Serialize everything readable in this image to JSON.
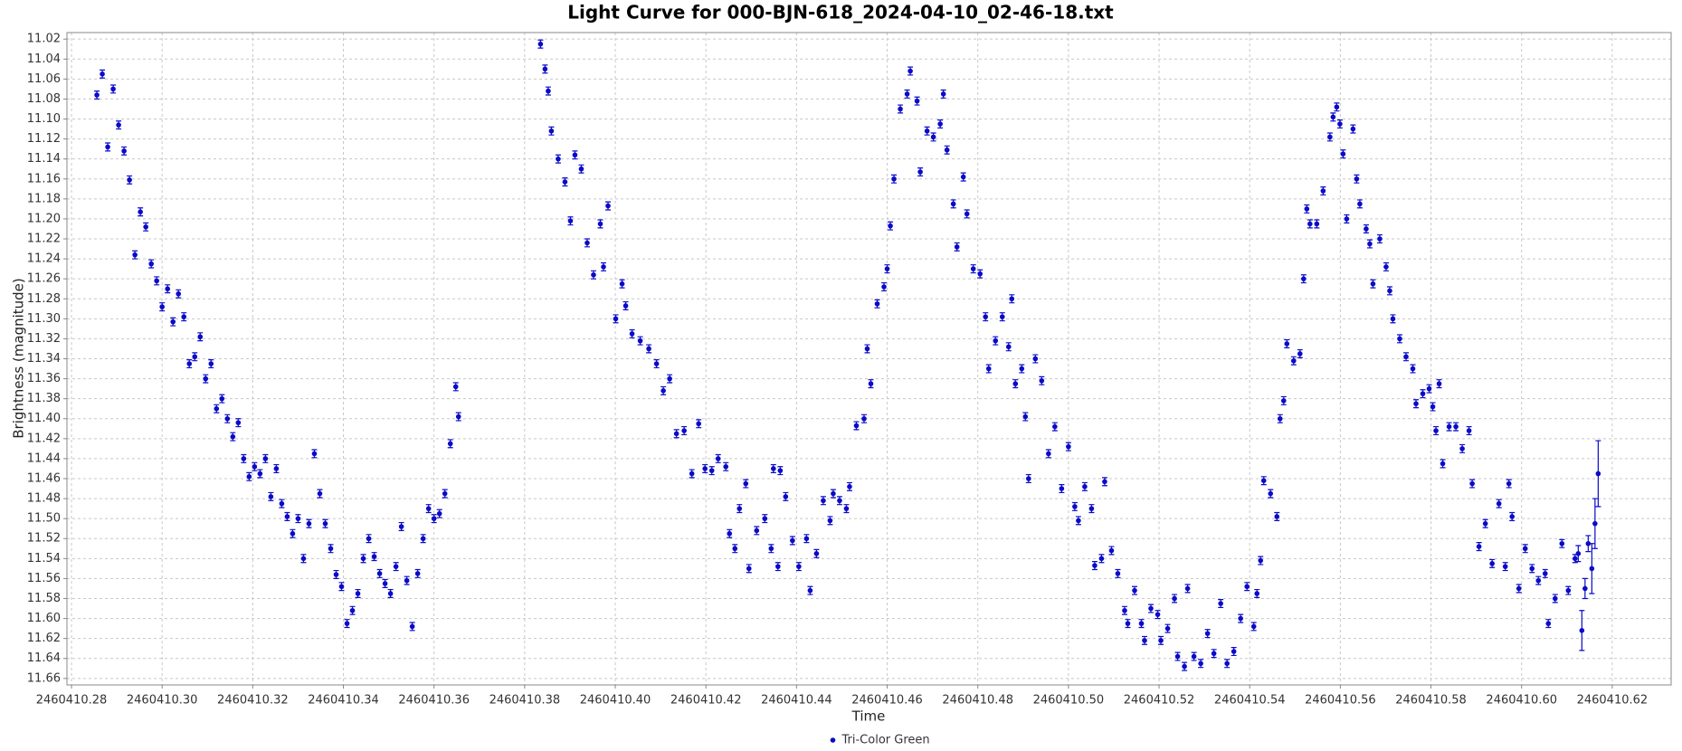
{
  "chart_data": {
    "type": "scatter",
    "title": "Light Curve for 000-BJN-618_2024-04-10_02-46-18.txt",
    "x_label": "Time",
    "y_label": "Brightness (magnitude)",
    "xlim": [
      2460410.279,
      2460410.633
    ],
    "ylim": [
      11.0135,
      11.6665
    ],
    "y_inverted": true,
    "grid": true,
    "legend": "bottom",
    "xticks": [
      2460410.28,
      {
        "value": 2460410.3,
        "label": "2460410.30"
      },
      2460410.32,
      2460410.34,
      2460410.36,
      2460410.38,
      {
        "value": 2460410.4,
        "label": "2460410.40"
      },
      2460410.42,
      2460410.44,
      2460410.46,
      2460410.48,
      {
        "value": 2460410.5,
        "label": "2460410.50"
      },
      2460410.52,
      2460410.54,
      2460410.56,
      2460410.58,
      {
        "value": 2460410.6,
        "label": "2460410.60"
      },
      2460410.62
    ],
    "yticks": [
      11.02,
      11.04,
      11.06,
      11.08,
      {
        "value": 11.1,
        "label": "11.10"
      },
      11.12,
      11.14,
      11.16,
      11.18,
      {
        "value": 11.2,
        "label": "11.20"
      },
      11.22,
      11.24,
      11.26,
      11.28,
      {
        "value": 11.3,
        "label": "11.30"
      },
      11.32,
      11.34,
      11.36,
      11.38,
      {
        "value": 11.4,
        "label": "11.40"
      },
      11.42,
      11.44,
      11.46,
      11.48,
      {
        "value": 11.5,
        "label": "11.50"
      },
      11.52,
      11.54,
      11.56,
      11.58,
      {
        "value": 11.6,
        "label": "11.60"
      },
      11.62,
      11.64,
      11.66
    ],
    "series": [
      {
        "name": "Tri-Color Green",
        "color": "#0a0ac8",
        "x": [
          2460410.2856,
          2460410.2868,
          2460410.288,
          2460410.2892,
          2460410.2904,
          2460410.2916,
          2460410.2928,
          2460410.294,
          2460410.2952,
          2460410.2964,
          2460410.2976,
          2460410.2988,
          2460410.3,
          2460410.3012,
          2460410.3024,
          2460410.3036,
          2460410.3048,
          2460410.306,
          2460410.3072,
          2460410.3084,
          2460410.3096,
          2460410.3108,
          2460410.312,
          2460410.3132,
          2460410.3144,
          2460410.3156,
          2460410.3168,
          2460410.318,
          2460410.3192,
          2460410.3204,
          2460410.3216,
          2460410.3228,
          2460410.324,
          2460410.3252,
          2460410.3264,
          2460410.3276,
          2460410.3288,
          2460410.33,
          2460410.3312,
          2460410.3324,
          2460410.3336,
          2460410.3348,
          2460410.336,
          2460410.3372,
          2460410.3384,
          2460410.3396,
          2460410.3408,
          2460410.342,
          2460410.3432,
          2460410.3444,
          2460410.3456,
          2460410.3468,
          2460410.348,
          2460410.3492,
          2460410.3504,
          2460410.3516,
          2460410.3528,
          2460410.354,
          2460410.3552,
          2460410.3564,
          2460410.3576,
          2460410.3588,
          2460410.36,
          2460410.3612,
          2460410.3624,
          2460410.3636,
          2460410.3648,
          2460410.3654,
          2460410.3835,
          2460410.3845,
          2460410.3852,
          2460410.3859,
          2460410.3874,
          2460410.3889,
          2460410.3901,
          2460410.3911,
          2460410.3925,
          2460410.3938,
          2460410.3952,
          2460410.3967,
          2460410.3974,
          2460410.3984,
          2460410.4001,
          2460410.4015,
          2460410.4023,
          2460410.4037,
          2460410.4055,
          2460410.4074,
          2460410.4091,
          2460410.4106,
          2460410.412,
          2460410.4135,
          2460410.4152,
          2460410.4169,
          2460410.4184,
          2460410.4198,
          2460410.4213,
          2460410.4227,
          2460410.4244,
          2460410.4252,
          2460410.4264,
          2460410.4274,
          2460410.4288,
          2460410.4295,
          2460410.4312,
          2460410.433,
          2460410.4344,
          2460410.4349,
          2460410.4359,
          2460410.4364,
          2460410.4376,
          2460410.4391,
          2460410.4405,
          2460410.4422,
          2460410.443,
          2460410.4444,
          2460410.4459,
          2460410.4474,
          2460410.4481,
          2460410.4495,
          2460410.451,
          2460410.4517,
          2460410.4532,
          2460410.4549,
          2460410.4556,
          2460410.4564,
          2460410.4578,
          2460410.4593,
          2460410.46,
          2460410.4607,
          2460410.4615,
          2460410.4629,
          2460410.4644,
          2460410.4651,
          2460410.4666,
          2460410.4673,
          2460410.4688,
          2460410.4702,
          2460410.4717,
          2460410.4724,
          2460410.4732,
          2460410.4746,
          2460410.4754,
          2460410.4768,
          2460410.4776,
          2460410.479,
          2460410.4805,
          2460410.4817,
          2460410.4824,
          2460410.4839,
          2460410.4854,
          2460410.4868,
          2460410.4875,
          2460410.4883,
          2460410.4897,
          2460410.4905,
          2460410.4912,
          2460410.4927,
          2460410.4941,
          2460410.4956,
          2460410.497,
          2460410.4985,
          2460410.5,
          2460410.5014,
          2460410.5022,
          2460410.5036,
          2460410.5051,
          2460410.5058,
          2460410.5073,
          2460410.508,
          2460410.5095,
          2460410.5109,
          2460410.5124,
          2460410.5131,
          2460410.5146,
          2460410.5161,
          2460410.5168,
          2460410.5182,
          2460410.5197,
          2460410.5204,
          2460410.5219,
          2460410.5234,
          2460410.5241,
          2460410.5256,
          2460410.5263,
          2460410.5277,
          2460410.5292,
          2460410.5307,
          2460410.5321,
          2460410.5336,
          2460410.535,
          2460410.5365,
          2460410.538,
          2460410.5394,
          2460410.5409,
          2460410.5416,
          2460410.5424,
          2460410.5431,
          2460410.5446,
          2460410.546,
          2460410.5467,
          2460410.5475,
          2460410.5482,
          2460410.5497,
          2460410.5511,
          2460410.5519,
          2460410.5526,
          2460410.5533,
          2460410.5548,
          2460410.5562,
          2460410.5577,
          2460410.5584,
          2460410.5592,
          2460410.5599,
          2460410.5606,
          2460410.5614,
          2460410.5628,
          2460410.5636,
          2460410.5643,
          2460410.5657,
          2460410.5665,
          2460410.5672,
          2460410.5687,
          2460410.5701,
          2460410.5709,
          2460410.5716,
          2460410.5731,
          2460410.5745,
          2460410.576,
          2460410.5767,
          2460410.5782,
          2460410.5796,
          2460410.5804,
          2460410.5811,
          2460410.5818,
          2460410.5826,
          2460410.584,
          2460410.5855,
          2460410.5869,
          2460410.5884,
          2460410.5891,
          2460410.5906,
          2460410.592,
          2460410.5935,
          2460410.595,
          2460410.5964,
          2460410.5972,
          2460410.5979,
          2460410.5994,
          2460410.6008,
          2460410.6023,
          2460410.6037,
          2460410.6052,
          2460410.6059,
          2460410.6074,
          2460410.6089,
          2460410.6103,
          2460410.6118,
          2460410.6125,
          2460410.6133,
          2460410.614,
          2460410.6147,
          2460410.6155,
          2460410.6162,
          2460410.6169
        ],
        "values": [
          11.076,
          11.055,
          11.128,
          11.07,
          11.106,
          11.132,
          11.161,
          11.236,
          11.193,
          11.208,
          11.245,
          11.262,
          11.288,
          11.27,
          11.303,
          11.275,
          11.298,
          11.345,
          11.338,
          11.318,
          11.36,
          11.345,
          11.39,
          11.38,
          11.4,
          11.418,
          11.404,
          11.44,
          11.458,
          11.448,
          11.455,
          11.44,
          11.478,
          11.45,
          11.485,
          11.498,
          11.515,
          11.5,
          11.54,
          11.505,
          11.435,
          11.475,
          11.505,
          11.53,
          11.556,
          11.568,
          11.605,
          11.592,
          11.575,
          11.54,
          11.52,
          11.538,
          11.555,
          11.565,
          11.575,
          11.548,
          11.508,
          11.562,
          11.608,
          11.555,
          11.52,
          11.49,
          11.5,
          11.495,
          11.475,
          11.425,
          11.368,
          11.398,
          11.025,
          11.05,
          11.072,
          11.112,
          11.14,
          11.163,
          11.202,
          11.136,
          11.15,
          11.224,
          11.256,
          11.205,
          11.248,
          11.187,
          11.3,
          11.265,
          11.287,
          11.315,
          11.322,
          11.33,
          11.345,
          11.372,
          11.36,
          11.415,
          11.412,
          11.455,
          11.405,
          11.45,
          11.452,
          11.44,
          11.448,
          11.515,
          11.53,
          11.49,
          11.465,
          11.55,
          11.512,
          11.5,
          11.53,
          11.45,
          11.548,
          11.452,
          11.478,
          11.522,
          11.548,
          11.52,
          11.572,
          11.535,
          11.482,
          11.502,
          11.475,
          11.482,
          11.49,
          11.468,
          11.407,
          11.4,
          11.33,
          11.365,
          11.285,
          11.268,
          11.25,
          11.207,
          11.16,
          11.09,
          11.075,
          11.052,
          11.082,
          11.153,
          11.112,
          11.118,
          11.105,
          11.075,
          11.131,
          11.185,
          11.228,
          11.158,
          11.195,
          11.25,
          11.255,
          11.298,
          11.35,
          11.322,
          11.298,
          11.328,
          11.28,
          11.365,
          11.35,
          11.398,
          11.46,
          11.34,
          11.362,
          11.435,
          11.408,
          11.47,
          11.428,
          11.488,
          11.502,
          11.468,
          11.49,
          11.547,
          11.54,
          11.463,
          11.532,
          11.555,
          11.592,
          11.605,
          11.572,
          11.605,
          11.622,
          11.59,
          11.596,
          11.622,
          11.61,
          11.58,
          11.638,
          11.648,
          11.57,
          11.638,
          11.645,
          11.615,
          11.635,
          11.585,
          11.645,
          11.633,
          11.6,
          11.568,
          11.608,
          11.575,
          11.542,
          11.462,
          11.475,
          11.498,
          11.4,
          11.382,
          11.325,
          11.342,
          11.335,
          11.26,
          11.19,
          11.205,
          11.205,
          11.172,
          11.118,
          11.098,
          11.088,
          11.105,
          11.135,
          11.2,
          11.11,
          11.16,
          11.185,
          11.21,
          11.225,
          11.265,
          11.22,
          11.248,
          11.272,
          11.3,
          11.32,
          11.338,
          11.35,
          11.385,
          11.375,
          11.37,
          11.388,
          11.412,
          11.365,
          11.445,
          11.408,
          11.408,
          11.43,
          11.412,
          11.465,
          11.528,
          11.505,
          11.545,
          11.485,
          11.548,
          11.465,
          11.498,
          11.57,
          11.53,
          11.55,
          11.562,
          11.555,
          11.605,
          11.58,
          11.525,
          11.572,
          11.54,
          11.535,
          11.612,
          11.57,
          11.525,
          11.55,
          11.505,
          11.455
        ],
        "errors": [
          0.004,
          0.004,
          0.004,
          0.004,
          0.004,
          0.004,
          0.004,
          0.004,
          0.004,
          0.004,
          0.004,
          0.004,
          0.004,
          0.004,
          0.004,
          0.004,
          0.004,
          0.004,
          0.004,
          0.004,
          0.004,
          0.004,
          0.004,
          0.004,
          0.004,
          0.004,
          0.004,
          0.004,
          0.004,
          0.004,
          0.004,
          0.004,
          0.004,
          0.004,
          0.004,
          0.004,
          0.004,
          0.004,
          0.004,
          0.004,
          0.004,
          0.004,
          0.004,
          0.004,
          0.004,
          0.004,
          0.004,
          0.004,
          0.004,
          0.004,
          0.004,
          0.004,
          0.004,
          0.004,
          0.004,
          0.004,
          0.004,
          0.004,
          0.004,
          0.004,
          0.004,
          0.004,
          0.004,
          0.004,
          0.004,
          0.004,
          0.004,
          0.004,
          0.004,
          0.004,
          0.004,
          0.004,
          0.004,
          0.004,
          0.004,
          0.004,
          0.004,
          0.004,
          0.004,
          0.004,
          0.004,
          0.004,
          0.004,
          0.004,
          0.004,
          0.004,
          0.004,
          0.004,
          0.004,
          0.004,
          0.004,
          0.004,
          0.004,
          0.004,
          0.004,
          0.004,
          0.004,
          0.004,
          0.004,
          0.004,
          0.004,
          0.004,
          0.004,
          0.004,
          0.004,
          0.004,
          0.004,
          0.004,
          0.004,
          0.004,
          0.004,
          0.004,
          0.004,
          0.004,
          0.004,
          0.004,
          0.004,
          0.004,
          0.004,
          0.004,
          0.004,
          0.004,
          0.004,
          0.004,
          0.004,
          0.004,
          0.004,
          0.004,
          0.004,
          0.004,
          0.004,
          0.004,
          0.004,
          0.004,
          0.004,
          0.004,
          0.004,
          0.004,
          0.004,
          0.004,
          0.004,
          0.004,
          0.004,
          0.004,
          0.004,
          0.004,
          0.004,
          0.004,
          0.004,
          0.004,
          0.004,
          0.004,
          0.004,
          0.004,
          0.004,
          0.004,
          0.004,
          0.004,
          0.004,
          0.004,
          0.004,
          0.004,
          0.004,
          0.004,
          0.004,
          0.004,
          0.004,
          0.004,
          0.004,
          0.004,
          0.004,
          0.004,
          0.004,
          0.004,
          0.004,
          0.004,
          0.004,
          0.004,
          0.004,
          0.004,
          0.004,
          0.004,
          0.004,
          0.004,
          0.004,
          0.004,
          0.004,
          0.004,
          0.004,
          0.004,
          0.004,
          0.004,
          0.004,
          0.004,
          0.004,
          0.004,
          0.004,
          0.004,
          0.004,
          0.004,
          0.004,
          0.004,
          0.004,
          0.004,
          0.004,
          0.004,
          0.004,
          0.004,
          0.004,
          0.004,
          0.004,
          0.004,
          0.004,
          0.004,
          0.004,
          0.004,
          0.004,
          0.004,
          0.004,
          0.004,
          0.004,
          0.004,
          0.004,
          0.004,
          0.004,
          0.004,
          0.004,
          0.004,
          0.004,
          0.004,
          0.004,
          0.004,
          0.004,
          0.004,
          0.004,
          0.004,
          0.004,
          0.004,
          0.004,
          0.004,
          0.004,
          0.004,
          0.004,
          0.004,
          0.004,
          0.004,
          0.004,
          0.004,
          0.004,
          0.004,
          0.004,
          0.004,
          0.004,
          0.004,
          0.004,
          0.004,
          0.004,
          0.004,
          0.008,
          0.02,
          0.01,
          0.008,
          0.025,
          0.025,
          0.033
        ]
      }
    ]
  }
}
